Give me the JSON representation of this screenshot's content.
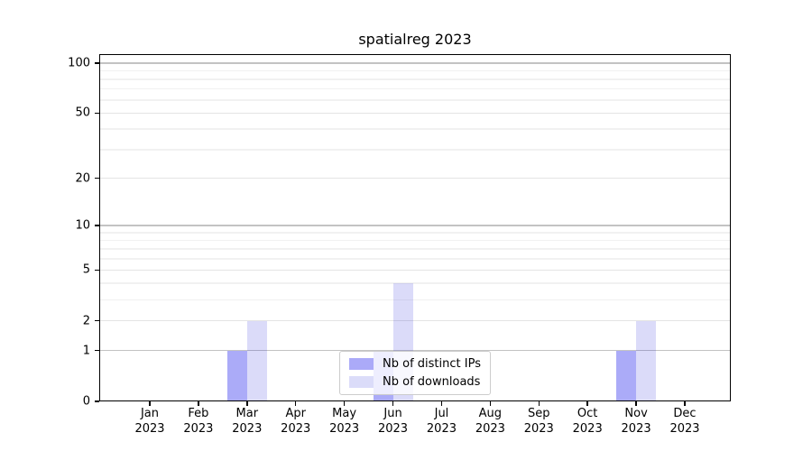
{
  "title": "spatialreg 2023",
  "chart_data": {
    "type": "bar",
    "title": "spatialreg 2023",
    "year": "2023",
    "categories": [
      "Jan",
      "Feb",
      "Mar",
      "Apr",
      "May",
      "Jun",
      "Jul",
      "Aug",
      "Sep",
      "Oct",
      "Nov",
      "Dec"
    ],
    "series": [
      {
        "name": "Nb of distinct IPs",
        "color": "#abaaf8",
        "bar_rgba": "rgba(0,0,234,0.33)",
        "values": [
          0,
          0,
          1,
          0,
          0,
          1,
          0,
          0,
          0,
          0,
          1,
          0
        ]
      },
      {
        "name": "Nb of downloads",
        "color": "#dbdcf9",
        "bar_rgba": "rgba(0,0,210,0.14)",
        "values": [
          0,
          0,
          2,
          0,
          0,
          4,
          0,
          0,
          0,
          0,
          2,
          0
        ]
      }
    ],
    "y_axis": {
      "scale": "log1p",
      "ylim": [
        0,
        113
      ],
      "ticks": [
        0,
        1,
        2,
        5,
        10,
        20,
        50,
        100
      ],
      "decade_gridlines": [
        1,
        10,
        100
      ],
      "labeled_minor_gridlines": [
        2,
        5,
        20,
        50
      ],
      "minor_gridlines": [
        3,
        4,
        6,
        7,
        8,
        9,
        30,
        40,
        60,
        70,
        80,
        90
      ]
    },
    "x_axis": {
      "tick_label_line2": "2023"
    },
    "legend": {
      "position": "lower center"
    },
    "grid": "horizontal",
    "colors": {
      "decade_grid": "#c3c3c3",
      "labeled_grid": "#e4e4e4",
      "minor_grid": "#f1f1f1",
      "axis": "#000000"
    }
  }
}
